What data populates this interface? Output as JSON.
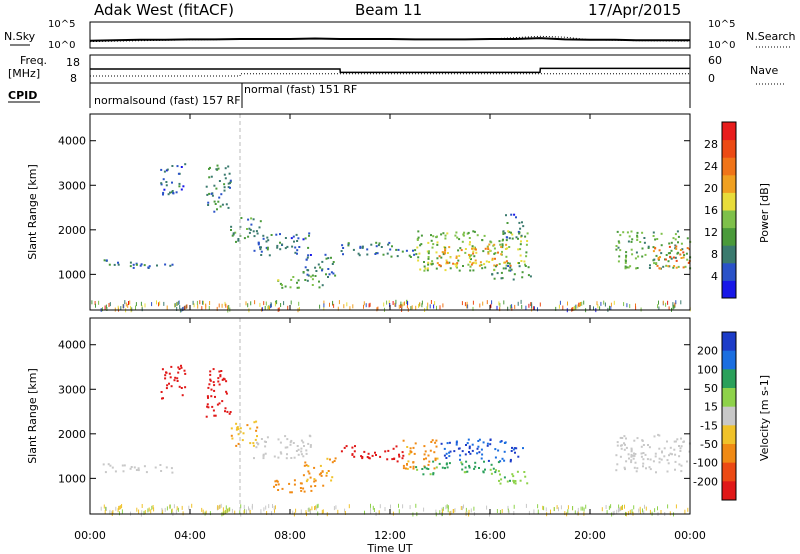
{
  "header": {
    "station": "Adak West (fitACF)",
    "beam": "Beam 11",
    "date": "17/Apr/2015"
  },
  "noise_panel": {
    "left_label": "N.Sky",
    "right_label": "N.Search",
    "tick_top": "10^5",
    "tick_bottom": "10^0"
  },
  "freq_panel": {
    "left_label_1": "Freq.",
    "left_label_2": "[MHz]",
    "right_label": "Nave",
    "left_tick_top": "18",
    "left_tick_bottom": "8",
    "right_tick_top": "60",
    "right_tick_bottom": "0"
  },
  "cpid": {
    "label": "CPID",
    "modes": [
      {
        "text": "normalsound (fast) 157 RF",
        "start_hour": 0
      },
      {
        "text": "normal (fast) 151 RF",
        "start_hour": 6
      }
    ]
  },
  "time_axis": {
    "label": "Time UT",
    "ticks": [
      "00:00",
      "04:00",
      "08:00",
      "12:00",
      "16:00",
      "20:00",
      "00:00"
    ],
    "tick_hours": [
      0,
      4,
      8,
      12,
      16,
      20,
      24
    ],
    "range": [
      0,
      24
    ]
  },
  "slant_axis": {
    "label": "Slant Range [km]",
    "ticks": [
      "1000",
      "2000",
      "3000",
      "4000"
    ],
    "tick_values": [
      1000,
      2000,
      3000,
      4000
    ],
    "range": [
      200,
      4600
    ]
  },
  "power_colorbar": {
    "label": "Power [dB]",
    "ticks": [
      "4",
      "8",
      "12",
      "16",
      "20",
      "24",
      "28"
    ],
    "tick_values": [
      4,
      8,
      12,
      16,
      20,
      24,
      28
    ],
    "range": [
      0,
      32
    ],
    "colors": [
      "#1818e8",
      "#2a52c8",
      "#3a7a6e",
      "#4a9a3a",
      "#7ec04a",
      "#e8dc3a",
      "#f0a020",
      "#f07418",
      "#ec4a14",
      "#e81c1c"
    ]
  },
  "velocity_colorbar": {
    "label": "Velocity [m s-1]",
    "ticks": [
      "200",
      "100",
      "50",
      "15",
      "-15",
      "-50",
      "-100",
      "-200"
    ],
    "bands": [
      {
        "color": "#1c3cc8"
      },
      {
        "color": "#1a6ee0"
      },
      {
        "color": "#2aa05a"
      },
      {
        "color": "#8ed24a"
      },
      {
        "color": "#c8c8c8"
      },
      {
        "color": "#f0c22a"
      },
      {
        "color": "#f08a14"
      },
      {
        "color": "#ec4a14"
      },
      {
        "color": "#e01818"
      }
    ]
  },
  "chart_data": [
    {
      "type": "line",
      "title": "N.Sky / N.Search",
      "x_range": [
        0,
        24
      ],
      "series": [
        {
          "name": "N.Sky",
          "x": [
            0,
            1,
            2,
            3,
            4,
            5,
            6,
            7,
            8,
            9,
            10,
            11,
            12,
            13,
            14,
            15,
            16,
            17,
            18,
            19,
            20,
            21,
            22,
            23,
            24
          ],
          "y": [
            1.2,
            1.3,
            1.4,
            1.4,
            1.5,
            1.5,
            1.6,
            1.6,
            1.6,
            1.7,
            1.6,
            1.6,
            1.6,
            1.5,
            1.5,
            1.5,
            1.6,
            1.6,
            1.8,
            1.5,
            1.4,
            1.4,
            1.3,
            1.3,
            1.3
          ]
        },
        {
          "name": "N.Search",
          "x": [
            0,
            2,
            4,
            6,
            8,
            10,
            12,
            14,
            16,
            18,
            19,
            20,
            22,
            24
          ],
          "y": [
            1.0,
            1.2,
            1.4,
            1.5,
            1.6,
            1.6,
            1.6,
            1.5,
            1.6,
            2.2,
            2.0,
            1.4,
            1.2,
            1.1
          ]
        }
      ]
    },
    {
      "type": "line",
      "title": "Freq / Nave",
      "x_range": [
        0,
        24
      ],
      "series": [
        {
          "name": "Freq.",
          "x": [
            0,
            0.1,
            10,
            10.01,
            18,
            18.01,
            24
          ],
          "y": [
            13,
            13,
            13,
            11.8,
            11.8,
            13.2,
            13.2
          ]
        },
        {
          "name": "Nave",
          "x": [
            0,
            6,
            6.01,
            24
          ],
          "y": [
            15,
            15,
            20,
            20
          ]
        }
      ]
    },
    {
      "type": "heatmap",
      "title": "Power [dB]",
      "xlabel": "Time UT",
      "ylabel": "Slant Range [km]",
      "x_range": [
        0,
        24
      ],
      "y_range": [
        200,
        4600
      ],
      "regions": [
        {
          "t0": 0.4,
          "t1": 3.3,
          "r0": 1150,
          "r1": 1350,
          "value": 8
        },
        {
          "t0": 2.8,
          "t1": 3.8,
          "r0": 2800,
          "r1": 3550,
          "value": 6
        },
        {
          "t0": 4.6,
          "t1": 5.6,
          "r0": 2400,
          "r1": 3500,
          "value": 9
        },
        {
          "t0": 5.6,
          "t1": 6.8,
          "r0": 1750,
          "r1": 2300,
          "value": 10
        },
        {
          "t0": 6.5,
          "t1": 8.8,
          "r0": 1450,
          "r1": 2000,
          "value": 7
        },
        {
          "t0": 7.3,
          "t1": 9.3,
          "r0": 700,
          "r1": 1000,
          "value": 13
        },
        {
          "t0": 8.5,
          "t1": 9.8,
          "r0": 950,
          "r1": 1500,
          "value": 8
        },
        {
          "t0": 10.0,
          "t1": 13.0,
          "r0": 1400,
          "r1": 1750,
          "value": 8
        },
        {
          "t0": 13.0,
          "t1": 17.5,
          "r0": 1100,
          "r1": 2000,
          "value": 14
        },
        {
          "t0": 13.8,
          "t1": 16.8,
          "r0": 1200,
          "r1": 1700,
          "value": 21
        },
        {
          "t0": 16.0,
          "t1": 17.6,
          "r0": 900,
          "r1": 1250,
          "value": 9
        },
        {
          "t0": 16.5,
          "t1": 17.3,
          "r0": 1800,
          "r1": 2400,
          "value": 7
        },
        {
          "t0": 21.0,
          "t1": 24.0,
          "r0": 1150,
          "r1": 2000,
          "value": 12
        },
        {
          "t0": 22.5,
          "t1": 24.0,
          "r0": 1150,
          "r1": 1650,
          "value": 24
        }
      ]
    },
    {
      "type": "heatmap",
      "title": "Velocity [m s-1]",
      "xlabel": "Time UT",
      "ylabel": "Slant Range [km]",
      "x_range": [
        0,
        24
      ],
      "y_range": [
        200,
        4600
      ],
      "regions": [
        {
          "t0": 0.4,
          "t1": 3.3,
          "r0": 1150,
          "r1": 1350,
          "value": 0
        },
        {
          "t0": 2.8,
          "t1": 3.8,
          "r0": 2800,
          "r1": 3550,
          "value": -220
        },
        {
          "t0": 4.6,
          "t1": 5.6,
          "r0": 2400,
          "r1": 3500,
          "value": -220
        },
        {
          "t0": 5.6,
          "t1": 6.8,
          "r0": 1750,
          "r1": 2300,
          "value": -40
        },
        {
          "t0": 6.5,
          "t1": 8.8,
          "r0": 1450,
          "r1": 2000,
          "value": 0
        },
        {
          "t0": 7.3,
          "t1": 9.3,
          "r0": 700,
          "r1": 1000,
          "value": -80
        },
        {
          "t0": 8.5,
          "t1": 9.8,
          "r0": 950,
          "r1": 1500,
          "value": -60
        },
        {
          "t0": 10.0,
          "t1": 12.5,
          "r0": 1400,
          "r1": 1750,
          "value": -220
        },
        {
          "t0": 12.5,
          "t1": 14.0,
          "r0": 1200,
          "r1": 1900,
          "value": -60
        },
        {
          "t0": 14.0,
          "t1": 17.3,
          "r0": 1400,
          "r1": 1900,
          "value": 200
        },
        {
          "t0": 13.0,
          "t1": 16.5,
          "r0": 1100,
          "r1": 1400,
          "value": 60
        },
        {
          "t0": 16.0,
          "t1": 17.6,
          "r0": 900,
          "r1": 1250,
          "value": 40
        },
        {
          "t0": 21.0,
          "t1": 24.0,
          "r0": 1150,
          "r1": 2000,
          "value": 0
        }
      ]
    }
  ]
}
